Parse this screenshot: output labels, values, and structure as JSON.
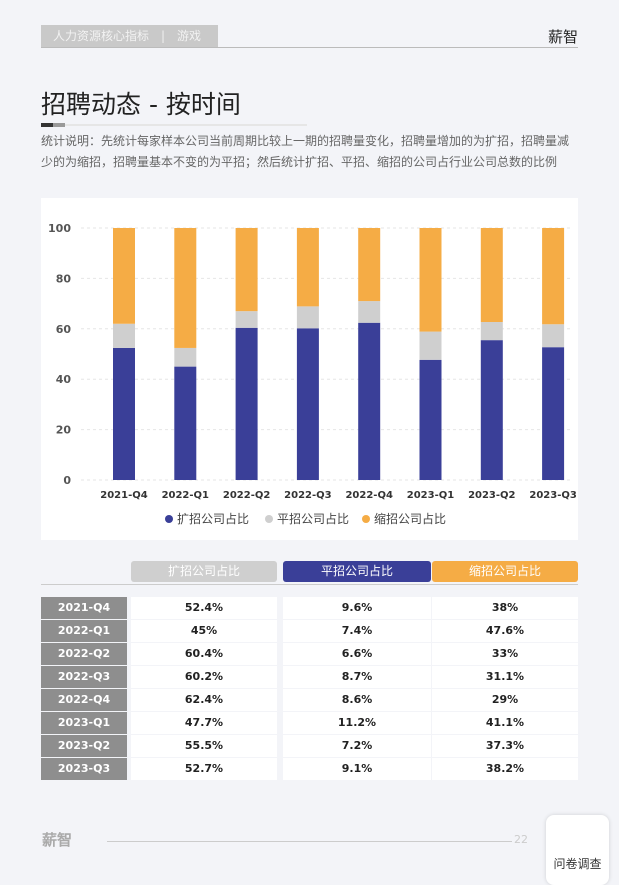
{
  "header": {
    "section": "人力资源核心指标　|　游戏",
    "brand": "薪智"
  },
  "title": "招聘动态 - 按时间",
  "description": "统计说明：先统计每家样本公司当前周期比较上一期的招聘量变化，招聘量增加的为扩招，招聘量减少的为缩招，招聘量基本不变的为平招；然后统计扩招、平招、缩招的公司占行业公司总数的比例",
  "colors": {
    "expand": "#3a3f98",
    "flat": "#cfcfcf",
    "shrink": "#f5ac45"
  },
  "chart_data": {
    "type": "bar",
    "stacked": true,
    "categories": [
      "2021-Q4",
      "2022-Q1",
      "2022-Q2",
      "2022-Q3",
      "2022-Q4",
      "2023-Q1",
      "2023-Q2",
      "2023-Q3"
    ],
    "series": [
      {
        "name": "扩招公司占比",
        "values": [
          52.4,
          45,
          60.4,
          60.2,
          62.4,
          47.7,
          55.5,
          52.7
        ]
      },
      {
        "name": "平招公司占比",
        "values": [
          9.6,
          7.4,
          6.6,
          8.7,
          8.6,
          11.2,
          7.2,
          9.1
        ]
      },
      {
        "name": "缩招公司占比",
        "values": [
          38,
          47.6,
          33,
          31.1,
          29,
          41.1,
          37.3,
          38.2
        ]
      }
    ],
    "ylim": [
      0,
      100
    ],
    "yticks": [
      "0",
      "20",
      "40",
      "60",
      "80",
      "100"
    ],
    "grid": true,
    "legend": "bottom"
  },
  "table": {
    "headers": [
      "扩招公司占比",
      "平招公司占比",
      "缩招公司占比"
    ],
    "rows": [
      {
        "label": "2021-Q4",
        "cells": [
          "52.4%",
          "9.6%",
          "38%"
        ]
      },
      {
        "label": "2022-Q1",
        "cells": [
          "45%",
          "7.4%",
          "47.6%"
        ]
      },
      {
        "label": "2022-Q2",
        "cells": [
          "60.4%",
          "6.6%",
          "33%"
        ]
      },
      {
        "label": "2022-Q3",
        "cells": [
          "60.2%",
          "8.7%",
          "31.1%"
        ]
      },
      {
        "label": "2022-Q4",
        "cells": [
          "62.4%",
          "8.6%",
          "29%"
        ]
      },
      {
        "label": "2023-Q1",
        "cells": [
          "47.7%",
          "11.2%",
          "41.1%"
        ]
      },
      {
        "label": "2023-Q2",
        "cells": [
          "55.5%",
          "7.2%",
          "37.3%"
        ]
      },
      {
        "label": "2023-Q3",
        "cells": [
          "52.7%",
          "9.1%",
          "38.2%"
        ]
      }
    ]
  },
  "footer": {
    "logo": "薪智",
    "page": "22",
    "survey": "问卷调查"
  }
}
